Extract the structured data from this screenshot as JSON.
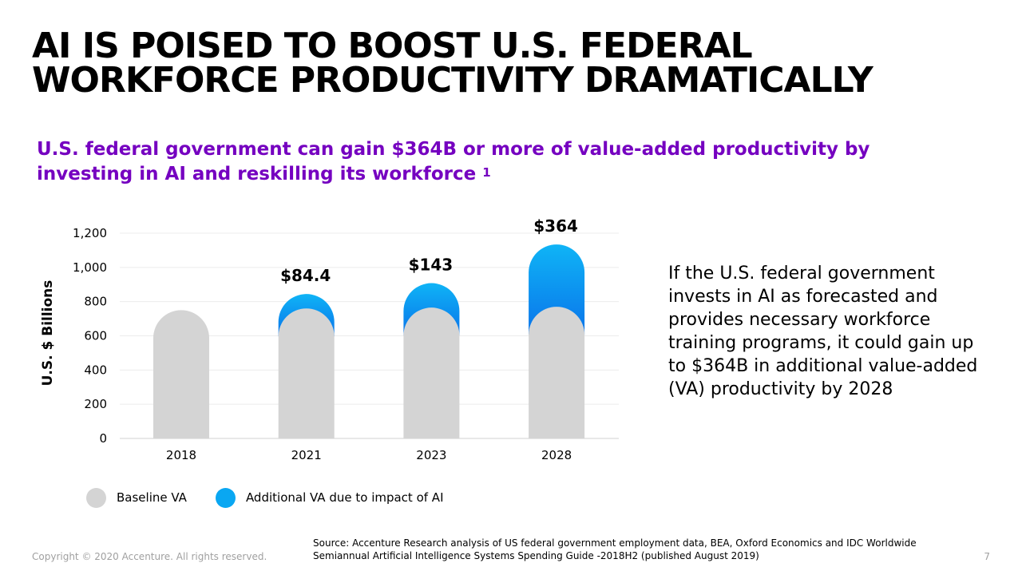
{
  "slide": {
    "title_lines": [
      "AI IS POISED TO BOOST U.S. FEDERAL",
      "WORKFORCE PRODUCTIVITY DRAMATICALLY"
    ],
    "subtitle": "U.S. federal government can gain $364B or more of value-added productivity by investing in AI and reskilling its workforce",
    "subtitle_footnote": "1",
    "side_text": "If the U.S. federal government invests in AI as forecasted and provides necessary workforce training programs, it could gain up to $364B in additional value-added (VA) productivity by 2028",
    "source": "Source: Accenture Research analysis of US federal government employment data, BEA, Oxford Economics and IDC Worldwide Semiannual Artificial Intelligence Systems Spending Guide -2018H2 (published August 2019)",
    "copyright": "Copyright © 2020 Accenture. All rights reserved.",
    "page_number": "7"
  },
  "chart_data": {
    "type": "bar",
    "stacked": true,
    "categories": [
      "2018",
      "2021",
      "2023",
      "2028"
    ],
    "series": [
      {
        "name": "Baseline VA",
        "values": [
          750,
          760,
          765,
          770
        ],
        "color": "#d4d4d4"
      },
      {
        "name": "Additional VA due to impact of AI",
        "values": [
          0,
          84.4,
          143,
          364
        ],
        "color": "#0aa7f2"
      }
    ],
    "data_labels": [
      "",
      "$84.4",
      "$143",
      "$364"
    ],
    "ylabel": "U.S. $ Billions",
    "ylim": [
      0,
      1200
    ],
    "yticks": [
      0,
      200,
      400,
      600,
      800,
      1000,
      1200
    ],
    "ytick_labels": [
      "0",
      "200",
      "400",
      "600",
      "800",
      "1,000",
      "1,200"
    ],
    "grid": true,
    "legend_position": "bottom-left"
  }
}
